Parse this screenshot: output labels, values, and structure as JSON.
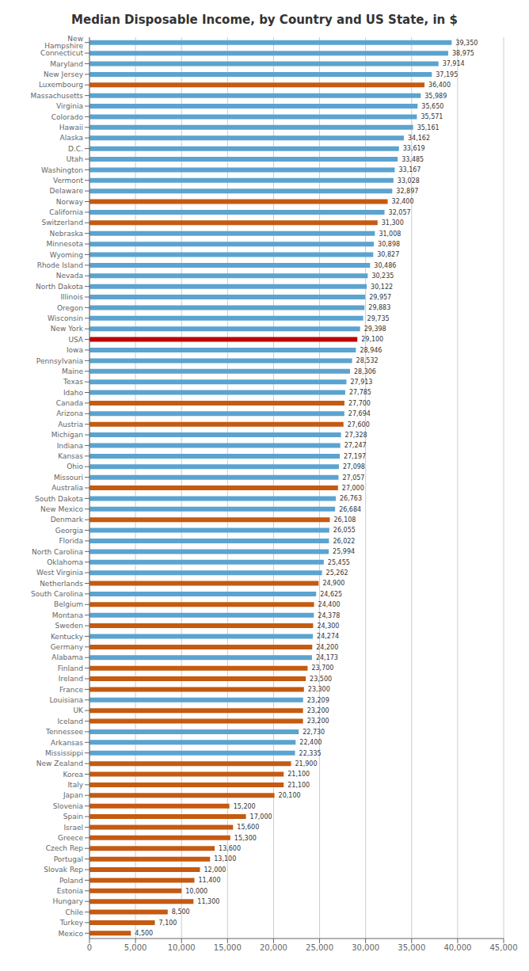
{
  "chart_data": {
    "type": "bar",
    "title": "Median Disposable Income, by Country and US State, in $",
    "orientation": "horizontal",
    "categories": [
      "New Hampshire",
      "Connecticut",
      "Maryland",
      "New Jersey",
      "Luxembourg",
      "Massachusetts",
      "Virginia",
      "Colorado",
      "Hawaii",
      "Alaska",
      "D.C.",
      "Utah",
      "Washington",
      "Vermont",
      "Delaware",
      "Norway",
      "California",
      "Switzerland",
      "Nebraska",
      "Minnesota",
      "Wyoming",
      "Rhode Island",
      "Nevada",
      "North Dakota",
      "Illinois",
      "Oregon",
      "Wisconsin",
      "New York",
      "USA",
      "Iowa",
      "Pennsylvania",
      "Maine",
      "Texas",
      "Idaho",
      "Canada",
      "Arizona",
      "Austria",
      "Michigan",
      "Indiana",
      "Kansas",
      "Ohio",
      "Missouri",
      "Australia",
      "South Dakota",
      "New Mexico",
      "Denmark",
      "Georgia",
      "Florida",
      "North Carolina",
      "Oklahoma",
      "West Virginia",
      "Netherlands",
      "South Carolina",
      "Belgium",
      "Montana",
      "Sweden",
      "Kentucky",
      "Germany",
      "Alabama",
      "Finland",
      "Ireland",
      "France",
      "Louisiana",
      "UK",
      "Iceland",
      "Tennessee",
      "Arkansas",
      "Mississippi",
      "New Zealand",
      "Korea",
      "Italy",
      "Japan",
      "Slovenia",
      "Spain",
      "Israel",
      "Greece",
      "Czech Rep",
      "Portugal",
      "Slovak Rep",
      "Poland",
      "Estonia",
      "Hungary",
      "Chile",
      "Turkey",
      "Mexico"
    ],
    "values": [
      39350,
      38975,
      37914,
      37195,
      36400,
      35989,
      35650,
      35571,
      35161,
      34162,
      33619,
      33485,
      33167,
      33028,
      32897,
      32400,
      32057,
      31300,
      31008,
      30898,
      30827,
      30486,
      30235,
      30122,
      29957,
      29883,
      29735,
      29398,
      29100,
      28946,
      28532,
      28306,
      27913,
      27785,
      27700,
      27694,
      27600,
      27328,
      27247,
      27197,
      27098,
      27057,
      27000,
      26763,
      26684,
      26108,
      26055,
      26022,
      25994,
      25455,
      25262,
      24900,
      24625,
      24400,
      24378,
      24300,
      24274,
      24200,
      24173,
      23700,
      23500,
      23300,
      23209,
      23200,
      23200,
      22730,
      22400,
      22335,
      21900,
      21100,
      21100,
      20100,
      15200,
      17000,
      15600,
      15300,
      13600,
      13100,
      12000,
      11400,
      10000,
      11300,
      8500,
      7100,
      4500
    ],
    "value_labels": [
      "39,350",
      "38,975",
      "37,914",
      "37,195",
      "36,400",
      "35,989",
      "35,650",
      "35,571",
      "35,161",
      "34,162",
      "33,619",
      "33,485",
      "33,167",
      "33,028",
      "32,897",
      "32,400",
      "32,057",
      "31,300",
      "31,008",
      "30,898",
      "30,827",
      "30,486",
      "30,235",
      "30,122",
      "29,957",
      "29,883",
      "29,735",
      "29,398",
      "29,100",
      "28,946",
      "28,532",
      "28,306",
      "27,913",
      "27,785",
      "27,700",
      "27,694",
      "27,600",
      "27,328",
      "27,247",
      "27,197",
      "27,098",
      "27,057",
      "27,000",
      "26,763",
      "26,684",
      "26,108",
      "26,055",
      "26,022",
      "25,994",
      "25,455",
      "25,262",
      "24,900",
      "24,625",
      "24,400",
      "24,378",
      "24,300",
      "24,274",
      "24,200",
      "24,173",
      "23,700",
      "23,500",
      "23,300",
      "23,209",
      "23,200",
      "23,200",
      "22,730",
      "22,400",
      "22,335",
      "21,900",
      "21,100",
      "21,100",
      "20,100",
      "15,200",
      "17,000",
      "15,600",
      "15,300",
      "13,600",
      "13,100",
      "12,000",
      "11,400",
      "10,000",
      "11,300",
      "8,500",
      "7,100",
      "4,500"
    ],
    "data_labels": true,
    "colors": [
      "#5BA3D0",
      "#5BA3D0",
      "#5BA3D0",
      "#5BA3D0",
      "#C55A11",
      "#5BA3D0",
      "#5BA3D0",
      "#5BA3D0",
      "#5BA3D0",
      "#5BA3D0",
      "#5BA3D0",
      "#5BA3D0",
      "#5BA3D0",
      "#5BA3D0",
      "#5BA3D0",
      "#C55A11",
      "#5BA3D0",
      "#C55A11",
      "#5BA3D0",
      "#5BA3D0",
      "#5BA3D0",
      "#5BA3D0",
      "#5BA3D0",
      "#5BA3D0",
      "#5BA3D0",
      "#5BA3D0",
      "#5BA3D0",
      "#5BA3D0",
      "#C00000",
      "#5BA3D0",
      "#5BA3D0",
      "#5BA3D0",
      "#5BA3D0",
      "#5BA3D0",
      "#C55A11",
      "#5BA3D0",
      "#C55A11",
      "#5BA3D0",
      "#5BA3D0",
      "#5BA3D0",
      "#5BA3D0",
      "#5BA3D0",
      "#C55A11",
      "#5BA3D0",
      "#5BA3D0",
      "#C55A11",
      "#5BA3D0",
      "#5BA3D0",
      "#5BA3D0",
      "#5BA3D0",
      "#5BA3D0",
      "#C55A11",
      "#5BA3D0",
      "#C55A11",
      "#5BA3D0",
      "#C55A11",
      "#5BA3D0",
      "#C55A11",
      "#5BA3D0",
      "#C55A11",
      "#C55A11",
      "#C55A11",
      "#5BA3D0",
      "#C55A11",
      "#C55A11",
      "#5BA3D0",
      "#5BA3D0",
      "#5BA3D0",
      "#C55A11",
      "#C55A11",
      "#C55A11",
      "#C55A11",
      "#C55A11",
      "#C55A11",
      "#C55A11",
      "#C55A11",
      "#C55A11",
      "#C55A11",
      "#C55A11",
      "#C55A11",
      "#C55A11",
      "#C55A11",
      "#C55A11",
      "#C55A11",
      "#C55A11"
    ],
    "xlim": [
      0,
      45000
    ],
    "xticks": [
      0,
      {
        "value": 5000,
        "label": "5,000"
      },
      {
        "value": 10000,
        "label": "10,000"
      },
      {
        "value": 15000,
        "label": "15,000"
      },
      {
        "value": 20000,
        "label": "20,000"
      },
      {
        "value": 25000,
        "label": "25,000"
      },
      {
        "value": 30000,
        "label": "30,000"
      },
      {
        "value": 35000,
        "label": "35,000"
      },
      {
        "value": 40000,
        "label": "40,000"
      },
      {
        "value": 45000,
        "label": "45,000"
      }
    ],
    "grid": true
  }
}
